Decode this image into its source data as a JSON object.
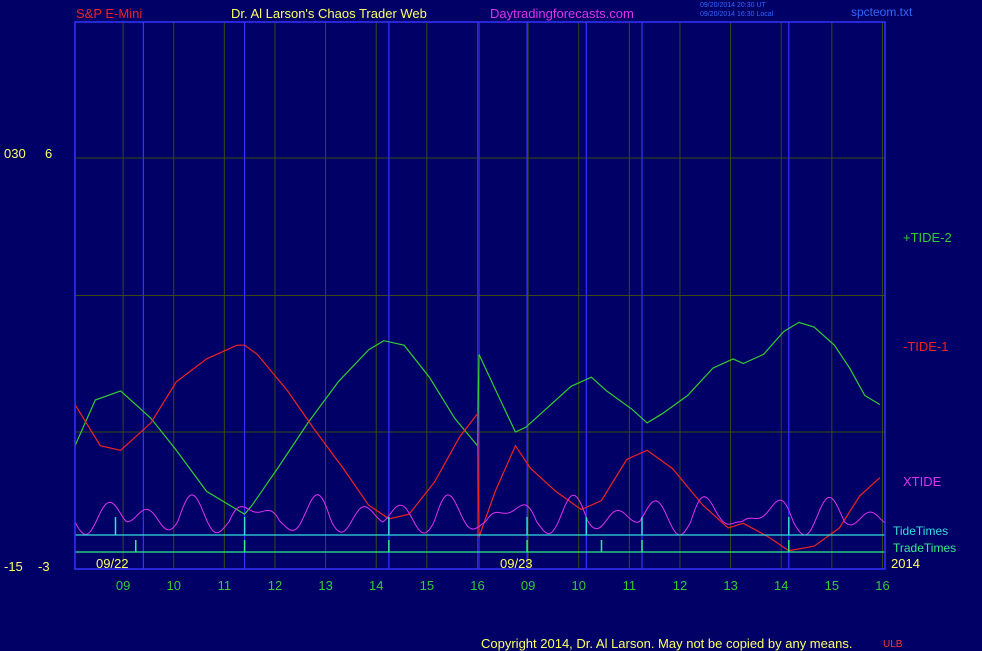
{
  "header": {
    "symbol": "S&P E-Mini",
    "author": "Dr. Al Larson's Chaos Trader Web",
    "site": "Daytradingforecasts.com",
    "stamp_line1": "09/20/2014 20:30 UT",
    "stamp_line2": "09/20/2014 16:30 Local",
    "file": "spcteom.txt"
  },
  "y_labels": {
    "left_top_a": "030",
    "left_top_b": "6",
    "left_bottom_a": "-15",
    "left_bottom_b": "-3"
  },
  "series_labels": {
    "tide2": "+TIDE-2",
    "tide1": "-TIDE-1",
    "xtide": "XTIDE",
    "tidetimes": "TideTimes",
    "tradetimes": "TradeTimes"
  },
  "date_labels": {
    "d1": "09/22",
    "d2": "09/23",
    "year": "2014"
  },
  "footer": {
    "copyright": "Copyright 2014, Dr. Al Larson. May not be copied by any means.",
    "badge": "ULB"
  },
  "colors": {
    "background": "#000066",
    "frame": "#3333ff",
    "grid": "#3a4a10",
    "tide2": "#33cc33",
    "tide1": "#ee2222",
    "xtide": "#dd33ee",
    "tidetimes": "#33dddd",
    "tradetimes": "#33ee88",
    "axis_text": "#33cc33",
    "yellow_text": "#ffff66"
  },
  "chart_data": {
    "type": "line",
    "ylim": [
      -3,
      6
    ],
    "x_ticks": [
      "09",
      "10",
      "11",
      "12",
      "13",
      "14",
      "15",
      "16",
      "09",
      "10",
      "11",
      "12",
      "13",
      "14",
      "15",
      "16"
    ],
    "tide2": [
      [
        0,
        -0.3
      ],
      [
        0.4,
        0.7
      ],
      [
        0.9,
        0.9
      ],
      [
        1.5,
        0.3
      ],
      [
        2,
        -0.4
      ],
      [
        2.6,
        -1.3
      ],
      [
        3.2,
        -1.7
      ],
      [
        3.35,
        -1.8
      ],
      [
        3.5,
        -1.6
      ],
      [
        4,
        -0.8
      ],
      [
        4.6,
        0.2
      ],
      [
        5.2,
        1.1
      ],
      [
        5.8,
        1.8
      ],
      [
        6.1,
        2.0
      ],
      [
        6.5,
        1.9
      ],
      [
        7.0,
        1.2
      ],
      [
        7.5,
        0.3
      ],
      [
        7.95,
        -0.3
      ],
      [
        7.98,
        1.7
      ],
      [
        8.4,
        0.7
      ],
      [
        8.7,
        0.0
      ],
      [
        8.9,
        0.1
      ],
      [
        9.3,
        0.5
      ],
      [
        9.8,
        1.0
      ],
      [
        10.2,
        1.2
      ],
      [
        10.5,
        0.9
      ],
      [
        11.0,
        0.5
      ],
      [
        11.3,
        0.2
      ],
      [
        11.6,
        0.4
      ],
      [
        12.1,
        0.8
      ],
      [
        12.6,
        1.4
      ],
      [
        13.0,
        1.6
      ],
      [
        13.2,
        1.5
      ],
      [
        13.6,
        1.7
      ],
      [
        14.0,
        2.2
      ],
      [
        14.3,
        2.4
      ],
      [
        14.6,
        2.3
      ],
      [
        15.0,
        1.9
      ],
      [
        15.3,
        1.4
      ],
      [
        15.6,
        0.8
      ],
      [
        15.9,
        0.6
      ]
    ],
    "tide1": [
      [
        0,
        0.6
      ],
      [
        0.5,
        -0.3
      ],
      [
        0.9,
        -0.4
      ],
      [
        1.5,
        0.2
      ],
      [
        2,
        1.1
      ],
      [
        2.6,
        1.6
      ],
      [
        3.2,
        1.9
      ],
      [
        3.35,
        1.9
      ],
      [
        3.6,
        1.7
      ],
      [
        4.2,
        0.9
      ],
      [
        4.7,
        0.1
      ],
      [
        5.3,
        -0.8
      ],
      [
        5.8,
        -1.6
      ],
      [
        6.2,
        -1.9
      ],
      [
        6.6,
        -1.8
      ],
      [
        7.1,
        -1.1
      ],
      [
        7.6,
        -0.1
      ],
      [
        7.95,
        0.4
      ],
      [
        7.98,
        -2.3
      ],
      [
        8.3,
        -1.3
      ],
      [
        8.7,
        -0.3
      ],
      [
        9.0,
        -0.8
      ],
      [
        9.5,
        -1.3
      ],
      [
        10.0,
        -1.7
      ],
      [
        10.4,
        -1.5
      ],
      [
        10.9,
        -0.6
      ],
      [
        11.3,
        -0.4
      ],
      [
        11.8,
        -0.8
      ],
      [
        12.4,
        -1.6
      ],
      [
        12.9,
        -2.1
      ],
      [
        13.2,
        -2.0
      ],
      [
        13.7,
        -2.3
      ],
      [
        14.1,
        -2.6
      ],
      [
        14.6,
        -2.5
      ],
      [
        15.1,
        -2.1
      ],
      [
        15.5,
        -1.4
      ],
      [
        15.9,
        -1.0
      ]
    ]
  }
}
